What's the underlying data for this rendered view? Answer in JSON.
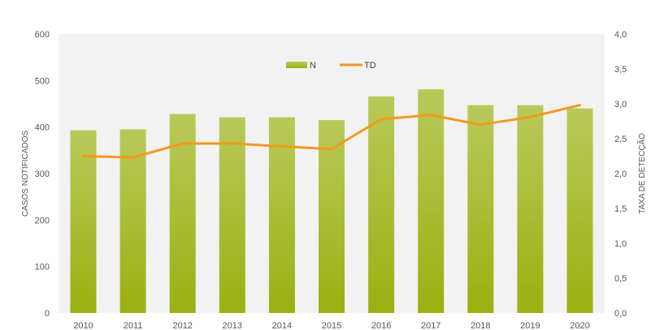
{
  "chart_data": {
    "type": "bar+line",
    "categories": [
      "2010",
      "2011",
      "2012",
      "2013",
      "2014",
      "2015",
      "2016",
      "2017",
      "2018",
      "2019",
      "2020"
    ],
    "series": [
      {
        "name": "N",
        "type": "bar",
        "axis": "left",
        "values": [
          393,
          395,
          428,
          421,
          421,
          415,
          466,
          481,
          447,
          447,
          440
        ]
      },
      {
        "name": "TD",
        "type": "line",
        "axis": "right",
        "values": [
          2.25,
          2.23,
          2.43,
          2.43,
          2.39,
          2.35,
          2.78,
          2.84,
          2.7,
          2.81,
          2.98
        ]
      }
    ],
    "xlabel": "",
    "ylabel_left": "CASOS NOTIFICADOS",
    "ylabel_right": "TAXA DE DETECÇÃO",
    "ylim_left": [
      0,
      600
    ],
    "ylim_right": [
      0,
      4
    ],
    "yticks_left": [
      "0",
      "100",
      "200",
      "300",
      "400",
      "500",
      "600"
    ],
    "yticks_right": [
      "0,0",
      "0,5",
      "1,0",
      "1,5",
      "2,0",
      "2,5",
      "3,0",
      "3,5",
      "4,0"
    ],
    "legend_position": "top-center",
    "grid": false,
    "colors": {
      "plot_background": "#f2f2f2",
      "bar_top": "#b9c95a",
      "bar_bottom": "#9bb010",
      "line": "#f39a1f"
    }
  }
}
